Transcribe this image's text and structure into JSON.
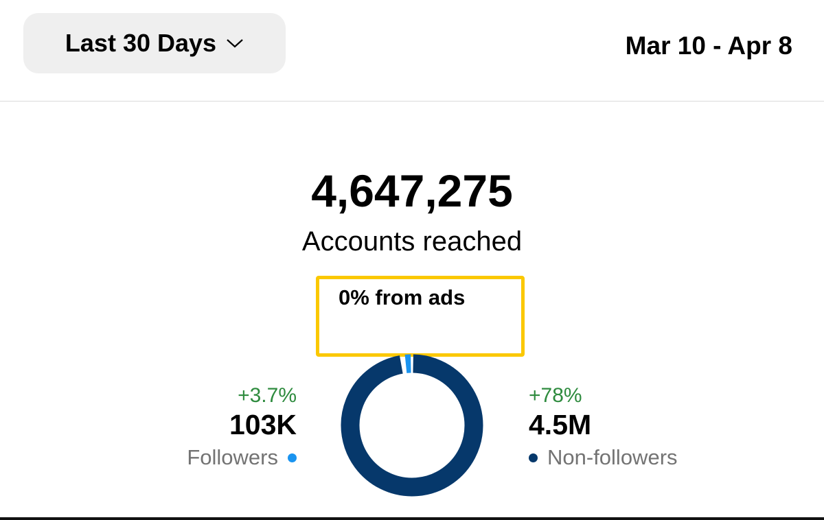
{
  "header": {
    "range_selector": {
      "label": "Last 30 Days",
      "icon": "chevron-down-icon"
    },
    "date_range": "Mar 10 - Apr 8"
  },
  "summary": {
    "total": "4,647,275",
    "label": "Accounts reached",
    "ads_text": "0% from ads"
  },
  "breakdown": {
    "followers": {
      "change": "+3.7%",
      "value": "103K",
      "label": "Followers",
      "color": "#1a94f0",
      "share": 0.022
    },
    "non_followers": {
      "change": "+78%",
      "value": "4.5M",
      "label": "Non-followers",
      "color": "#06386b",
      "share": 0.978
    }
  },
  "colors": {
    "highlight": "#fbc800",
    "positive": "#2e8b3e"
  }
}
